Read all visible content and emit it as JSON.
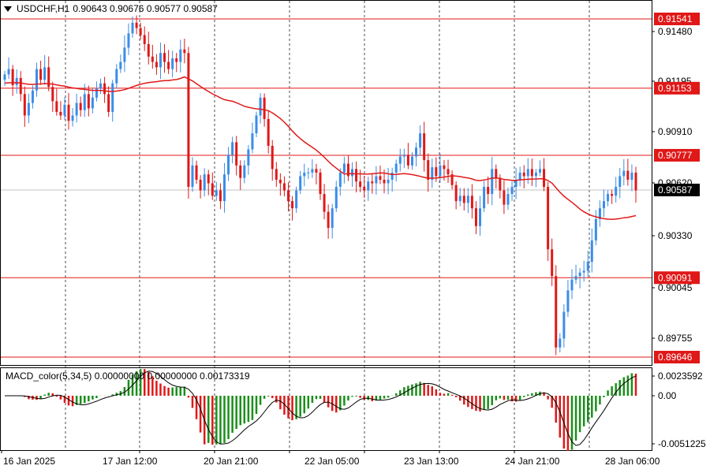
{
  "header": {
    "symbol": "USDCHF,H1",
    "ohlc": "0.90643 0.90676 0.90577 0.90587"
  },
  "price_axis": {
    "ticks": [
      "0.91480",
      "0.91195",
      "0.90910",
      "0.90620",
      "0.90330",
      "0.90045",
      "0.89755"
    ],
    "current_price": "0.90587"
  },
  "horizontal_lines": [
    "0.91541",
    "0.91153",
    "0.90777",
    "0.90091",
    "0.89646"
  ],
  "macd": {
    "label": "MACD_color(5,34,5) 0.00000000 0.00000000 0.00173319",
    "ticks": [
      "0.0023592",
      "0.00",
      "-0.0051225"
    ]
  },
  "time_axis": [
    "16 Jan 2025",
    "17 Jan 12:00",
    "20 Jan 21:00",
    "22 Jan 05:00",
    "23 Jan 13:00",
    "24 Jan 21:00",
    "28 Jan 06:00"
  ],
  "colors": {
    "bull": "#3b8de8",
    "bear": "#e01818",
    "level_line": "#e01818",
    "ma_line": "#e01818",
    "macd_up": "#1a8f1a",
    "macd_down": "#e01818",
    "tag_bg": "#e01818",
    "current_tag_bg": "#000000"
  },
  "chart_data": {
    "type": "candlestick",
    "price_range": [
      0.8963,
      0.9166
    ],
    "closes": [
      0.9123,
      0.9126,
      0.9117,
      0.9121,
      0.9112,
      0.91,
      0.9107,
      0.9114,
      0.9126,
      0.912,
      0.9127,
      0.9116,
      0.9108,
      0.9102,
      0.91,
      0.9106,
      0.9097,
      0.91,
      0.9107,
      0.9103,
      0.9112,
      0.9104,
      0.911,
      0.9115,
      0.9118,
      0.9112,
      0.9102,
      0.9118,
      0.9126,
      0.913,
      0.9138,
      0.9146,
      0.9152,
      0.9149,
      0.9145,
      0.914,
      0.9133,
      0.913,
      0.9127,
      0.9135,
      0.913,
      0.9126,
      0.9132,
      0.913,
      0.9137,
      0.9135,
      0.906,
      0.9072,
      0.9064,
      0.9058,
      0.9067,
      0.9062,
      0.9055,
      0.9058,
      0.9052,
      0.9067,
      0.9078,
      0.9085,
      0.9072,
      0.9065,
      0.9072,
      0.9081,
      0.909,
      0.91,
      0.911,
      0.9098,
      0.9083,
      0.907,
      0.9064,
      0.9062,
      0.9058,
      0.9052,
      0.9048,
      0.9058,
      0.9066,
      0.9068,
      0.9068,
      0.907,
      0.9068,
      0.9056,
      0.9046,
      0.9037,
      0.9048,
      0.906,
      0.9068,
      0.9073,
      0.9066,
      0.907,
      0.9063,
      0.906,
      0.9058,
      0.9063,
      0.9062,
      0.9066,
      0.9064,
      0.9062,
      0.9064,
      0.9068,
      0.9073,
      0.9077,
      0.9078,
      0.9072,
      0.9077,
      0.9082,
      0.909,
      0.9075,
      0.9064,
      0.9071,
      0.9066,
      0.9072,
      0.907,
      0.9067,
      0.9061,
      0.9052,
      0.9055,
      0.9051,
      0.9055,
      0.9048,
      0.9038,
      0.9048,
      0.906,
      0.9056,
      0.907,
      0.9065,
      0.9058,
      0.905,
      0.9056,
      0.906,
      0.9064,
      0.9068,
      0.9066,
      0.907,
      0.9066,
      0.9068,
      0.907,
      0.906,
      0.9025,
      0.901,
      0.897,
      0.8975,
      0.899,
      0.9002,
      0.9008,
      0.901,
      0.9012,
      0.9013,
      0.9018,
      0.903,
      0.9042,
      0.9048,
      0.9052,
      0.9056,
      0.9055,
      0.906,
      0.9066,
      0.9069,
      0.9064,
      0.9068,
      0.9058
    ]
  }
}
